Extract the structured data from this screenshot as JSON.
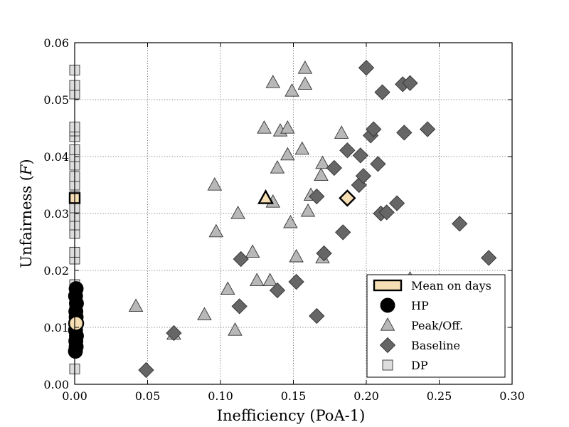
{
  "chart_data": {
    "type": "scatter",
    "xlabel": "Inefficiency (PoA-1)",
    "ylabel": "Unfairness (F)",
    "ylabel_main": "Unfairness (",
    "ylabel_italic": "F",
    "ylabel_close": ")",
    "xlim": [
      0,
      0.3
    ],
    "ylim": [
      0,
      0.06
    ],
    "xticks": [
      0.0,
      0.05,
      0.1,
      0.15,
      0.2,
      0.25,
      0.3
    ],
    "xtick_labels": [
      "0.00",
      "0.05",
      "0.10",
      "0.15",
      "0.20",
      "0.25",
      "0.30"
    ],
    "yticks": [
      0.0,
      0.01,
      0.02,
      0.03,
      0.04,
      0.05,
      0.06
    ],
    "ytick_labels": [
      "0.00",
      "0.01",
      "0.02",
      "0.03",
      "0.04",
      "0.05",
      "0.06"
    ],
    "grid": true,
    "legend_position": "bottom-right",
    "legend": [
      "Mean on days",
      "HP",
      "Peak/Off.",
      "Baseline",
      "DP"
    ],
    "colors": {
      "mean_fill": "#f5deb3",
      "hp": "#000000",
      "peak": "#b8b8b8",
      "baseline": "#666666",
      "dp": "#dddddd"
    },
    "series": [
      {
        "name": "DP",
        "marker": "square",
        "points": [
          [
            0.0,
            0.0027
          ],
          [
            0.0,
            0.0105
          ],
          [
            0.0,
            0.0135
          ],
          [
            0.0,
            0.0155
          ],
          [
            0.0,
            0.0175
          ],
          [
            0.0,
            0.022
          ],
          [
            0.0,
            0.0232
          ],
          [
            0.0,
            0.0265
          ],
          [
            0.0,
            0.028
          ],
          [
            0.0,
            0.0295
          ],
          [
            0.0,
            0.031
          ],
          [
            0.0,
            0.033
          ],
          [
            0.0,
            0.035
          ],
          [
            0.0,
            0.0365
          ],
          [
            0.0,
            0.0385
          ],
          [
            0.0,
            0.04
          ],
          [
            0.0,
            0.0412
          ],
          [
            0.0,
            0.0435
          ],
          [
            0.0,
            0.0445
          ],
          [
            0.0,
            0.0452
          ],
          [
            0.0,
            0.051
          ],
          [
            0.0,
            0.0525
          ],
          [
            0.0,
            0.0552
          ]
        ]
      },
      {
        "name": "HP",
        "marker": "circle",
        "points": [
          [
            0.0005,
            0.0058
          ],
          [
            0.001,
            0.0066
          ],
          [
            0.0008,
            0.0076
          ],
          [
            0.0012,
            0.0085
          ],
          [
            0.0006,
            0.0095
          ],
          [
            0.001,
            0.0118
          ],
          [
            0.0008,
            0.0128
          ],
          [
            0.0012,
            0.0142
          ],
          [
            0.0006,
            0.0155
          ],
          [
            0.001,
            0.0168
          ]
        ]
      },
      {
        "name": "Peak/Off.",
        "marker": "triangle",
        "points": [
          [
            0.042,
            0.0137
          ],
          [
            0.068,
            0.0088
          ],
          [
            0.089,
            0.0122
          ],
          [
            0.096,
            0.035
          ],
          [
            0.097,
            0.0268
          ],
          [
            0.105,
            0.0167
          ],
          [
            0.11,
            0.0095
          ],
          [
            0.112,
            0.03
          ],
          [
            0.122,
            0.0232
          ],
          [
            0.125,
            0.0182
          ],
          [
            0.13,
            0.045
          ],
          [
            0.134,
            0.0182
          ],
          [
            0.136,
            0.053
          ],
          [
            0.136,
            0.032
          ],
          [
            0.139,
            0.038
          ],
          [
            0.141,
            0.0445
          ],
          [
            0.146,
            0.0403
          ],
          [
            0.146,
            0.045
          ],
          [
            0.148,
            0.0284
          ],
          [
            0.149,
            0.0515
          ],
          [
            0.152,
            0.0224
          ],
          [
            0.156,
            0.0413
          ],
          [
            0.158,
            0.0555
          ],
          [
            0.158,
            0.0527
          ],
          [
            0.16,
            0.0304
          ],
          [
            0.162,
            0.0332
          ],
          [
            0.169,
            0.0367
          ],
          [
            0.17,
            0.0388
          ],
          [
            0.17,
            0.0222
          ],
          [
            0.183,
            0.0441
          ],
          [
            0.23,
            0.0185
          ]
        ]
      },
      {
        "name": "Baseline",
        "marker": "diamond",
        "points": [
          [
            0.049,
            0.0025
          ],
          [
            0.068,
            0.009
          ],
          [
            0.113,
            0.0137
          ],
          [
            0.114,
            0.022
          ],
          [
            0.139,
            0.0165
          ],
          [
            0.152,
            0.018
          ],
          [
            0.166,
            0.012
          ],
          [
            0.166,
            0.033
          ],
          [
            0.171,
            0.023
          ],
          [
            0.178,
            0.038
          ],
          [
            0.184,
            0.0267
          ],
          [
            0.187,
            0.0411
          ],
          [
            0.195,
            0.035
          ],
          [
            0.196,
            0.0402
          ],
          [
            0.198,
            0.0366
          ],
          [
            0.2,
            0.0556
          ],
          [
            0.203,
            0.0437
          ],
          [
            0.205,
            0.0448
          ],
          [
            0.208,
            0.0387
          ],
          [
            0.21,
            0.03
          ],
          [
            0.211,
            0.0513
          ],
          [
            0.214,
            0.0302
          ],
          [
            0.221,
            0.0318
          ],
          [
            0.225,
            0.0527
          ],
          [
            0.226,
            0.0442
          ],
          [
            0.23,
            0.0529
          ],
          [
            0.242,
            0.0448
          ],
          [
            0.264,
            0.0282
          ],
          [
            0.284,
            0.0222
          ]
        ]
      }
    ],
    "mean_on_days": [
      {
        "series": "DP",
        "marker": "square",
        "x": 0.0,
        "y": 0.0327
      },
      {
        "series": "HP",
        "marker": "circle",
        "x": 0.001,
        "y": 0.0107
      },
      {
        "series": "Peak/Off.",
        "marker": "triangle",
        "x": 0.131,
        "y": 0.0327
      },
      {
        "series": "Baseline",
        "marker": "diamond",
        "x": 0.187,
        "y": 0.0327
      }
    ]
  }
}
